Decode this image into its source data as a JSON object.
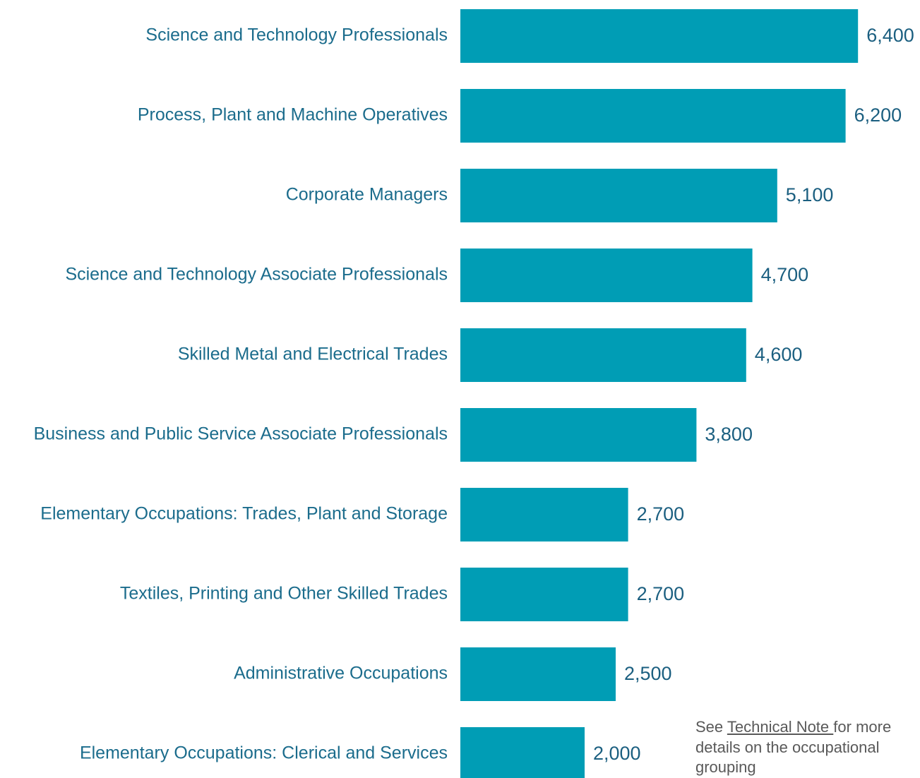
{
  "chart_data": {
    "type": "bar",
    "orientation": "horizontal",
    "categories": [
      "Science and Technology Professionals",
      "Process, Plant and Machine Operatives",
      "Corporate Managers",
      "Science and Technology Associate Professionals",
      "Skilled Metal and Electrical Trades",
      "Business and Public Service Associate Professionals",
      "Elementary Occupations: Trades, Plant and Storage",
      "Textiles, Printing and Other Skilled Trades",
      "Administrative Occupations",
      "Elementary Occupations: Clerical and Services"
    ],
    "values": [
      6400,
      6200,
      5100,
      4700,
      4600,
      3800,
      2700,
      2700,
      2500,
      2000
    ],
    "value_labels": [
      "6,400",
      "6,200",
      "5,100",
      "4,700",
      "4,600",
      "3,800",
      "2,700",
      "2,700",
      "2,500",
      "2,000"
    ],
    "color": "#009db5",
    "xlim": [
      0,
      7000
    ]
  },
  "note": {
    "before": "See ",
    "link": "Technical Note ",
    "after": "for more details on the occupational grouping"
  }
}
